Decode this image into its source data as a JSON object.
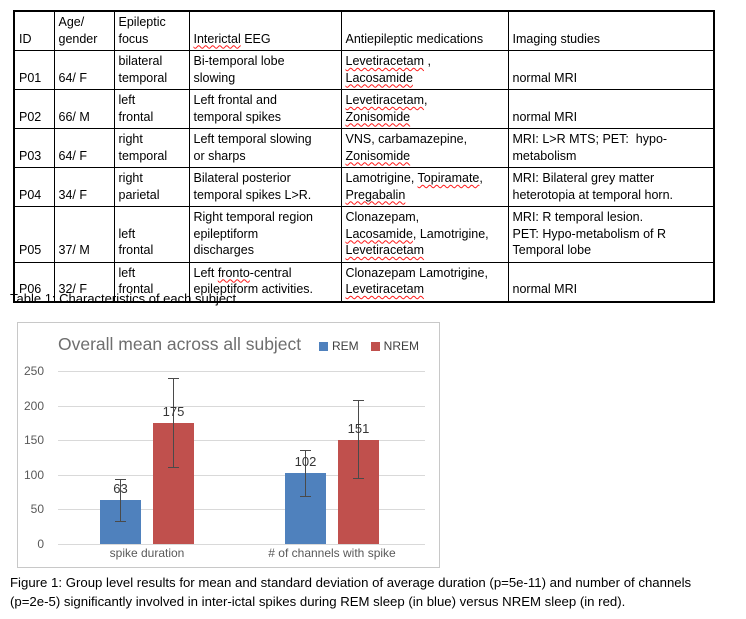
{
  "table": {
    "caption": "Table 1: Characteristics of each subject.",
    "header": [
      [
        {
          "t": "ID"
        }
      ],
      [
        {
          "t": "Age/\ngender"
        }
      ],
      [
        {
          "t": "Epileptic\nfocus"
        }
      ],
      [
        {
          "t": "Interictal",
          "w": true
        },
        {
          "t": " EEG"
        }
      ],
      [
        {
          "t": "Antiepileptic medications"
        }
      ],
      [
        {
          "t": "Imaging studies"
        }
      ]
    ],
    "rows": [
      {
        "cells": [
          [
            {
              "t": "P01"
            }
          ],
          [
            {
              "t": "64/ F"
            }
          ],
          [
            {
              "t": "bilateral\ntemporal"
            }
          ],
          [
            {
              "t": "Bi-temporal lobe\nslowing"
            }
          ],
          [
            {
              "t": "Levetiracetam",
              "w": true
            },
            {
              "t": " ,\n"
            },
            {
              "t": "Lacosamide",
              "w": true
            }
          ],
          [
            {
              "t": "normal MRI"
            }
          ]
        ]
      },
      {
        "cells": [
          [
            {
              "t": "P02"
            }
          ],
          [
            {
              "t": "66/ M"
            }
          ],
          [
            {
              "t": "left\nfrontal"
            }
          ],
          [
            {
              "t": "Left frontal and\ntemporal spikes"
            }
          ],
          [
            {
              "t": "Levetiracetam",
              "w": true
            },
            {
              "t": ",\n"
            },
            {
              "t": "Zonisomide",
              "w": true
            }
          ],
          [
            {
              "t": "normal MRI"
            }
          ]
        ]
      },
      {
        "cells": [
          [
            {
              "t": "P03"
            }
          ],
          [
            {
              "t": "64/ F"
            }
          ],
          [
            {
              "t": "right\ntemporal"
            }
          ],
          [
            {
              "t": "Left temporal slowing\nor sharps"
            }
          ],
          [
            {
              "t": "VNS, carbamazepine,\n"
            },
            {
              "t": "Zonisomide",
              "w": true
            }
          ],
          [
            {
              "t": "MRI: L>R MTS; PET:  hypo-\nmetabolism"
            }
          ]
        ]
      },
      {
        "cells": [
          [
            {
              "t": "P04"
            }
          ],
          [
            {
              "t": "34/ F"
            }
          ],
          [
            {
              "t": "right\nparietal"
            }
          ],
          [
            {
              "t": "Bilateral posterior\ntemporal spikes L>R."
            }
          ],
          [
            {
              "t": "Lamotrigine, "
            },
            {
              "t": "Topiramate",
              "w": true
            },
            {
              "t": ",\n"
            },
            {
              "t": "Pregabalin",
              "w": true
            }
          ],
          [
            {
              "t": "MRI: Bilateral grey matter\nheterotopia at temporal horn."
            }
          ]
        ]
      },
      {
        "cells": [
          [
            {
              "t": "P05"
            }
          ],
          [
            {
              "t": "37/ M"
            }
          ],
          [
            {
              "t": "left\nfrontal"
            }
          ],
          [
            {
              "t": "Right temporal region\nepileptiform\ndischarges"
            }
          ],
          [
            {
              "t": "Clonazepam,\n"
            },
            {
              "t": "Lacosamide",
              "w": true
            },
            {
              "t": ", Lamotrigine,\n"
            },
            {
              "t": "Levetiracetam",
              "w": true
            }
          ],
          [
            {
              "t": "MRI: R temporal lesion.\nPET: Hypo-metabolism of R\nTemporal lobe"
            }
          ]
        ]
      },
      {
        "cells": [
          [
            {
              "t": "P06"
            }
          ],
          [
            {
              "t": "32/ F"
            }
          ],
          [
            {
              "t": "left\nfrontal"
            }
          ],
          [
            {
              "t": "Left "
            },
            {
              "t": "fronto",
              "w": true
            },
            {
              "t": "-central\nepileptiform activities."
            }
          ],
          [
            {
              "t": "Clonazepam Lamotrigine,\n"
            },
            {
              "t": "Levetiracetam",
              "w": true
            }
          ],
          [
            {
              "t": "normal MRI"
            }
          ]
        ]
      }
    ]
  },
  "figure": {
    "caption": "Figure 1: Group level results for mean and standard deviation of average duration (p=5e-11) and number of channels\n(p=2e-5) significantly involved in inter-ictal spikes during REM sleep (in blue) versus NREM sleep (in red)."
  },
  "chart_data": {
    "type": "bar",
    "title": "Overall mean across all subject",
    "categories": [
      "spike duration",
      "# of channels with spike"
    ],
    "series": [
      {
        "name": "REM",
        "color": "#4F81BD",
        "values": [
          63,
          102
        ],
        "stdev": [
          31,
          34
        ]
      },
      {
        "name": "NREM",
        "color": "#C0504D",
        "values": [
          175,
          151
        ],
        "stdev": [
          65,
          57
        ]
      }
    ],
    "ylim": [
      0,
      250
    ],
    "yticks": [
      0,
      50,
      100,
      150,
      200,
      250
    ],
    "grid": true,
    "legend_position": "top-right",
    "bar_labels": true,
    "title_color": "#6e6e6e"
  }
}
